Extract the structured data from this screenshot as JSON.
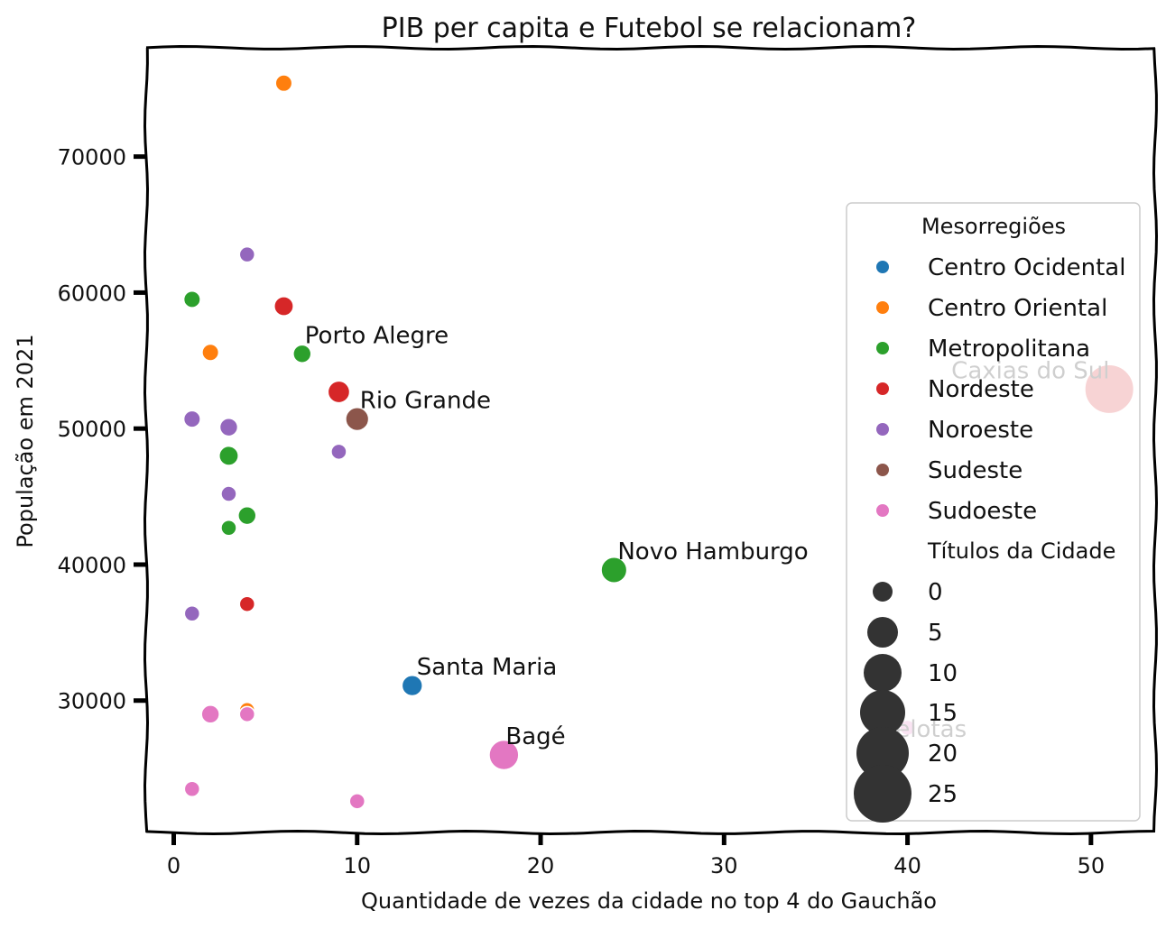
{
  "chart_data": {
    "type": "scatter",
    "title": "PIB per capita e Futebol se relacionam?",
    "xlabel": "Quantidade de vezes da cidade no top 4 do Gauchão",
    "ylabel": "População em 2021",
    "xlim": [
      -1.5,
      53.5
    ],
    "ylim": [
      20300,
      78000
    ],
    "x_ticks": [
      0,
      10,
      20,
      30,
      40,
      50
    ],
    "y_ticks": [
      30000,
      40000,
      50000,
      60000,
      70000
    ],
    "x_tick_labels": [
      "0",
      "10",
      "20",
      "30",
      "40",
      "50"
    ],
    "y_tick_labels": [
      "30000",
      "40000",
      "50000",
      "60000",
      "70000"
    ],
    "grid": false,
    "legend": {
      "placement": "right",
      "hue_title": "Mesorregiões",
      "size_title": "Títulos da Cidade",
      "hue_entries": [
        {
          "label": "Centro Ocidental",
          "color": "#1f77b4"
        },
        {
          "label": "Centro Oriental",
          "color": "#ff7f0e"
        },
        {
          "label": "Metropolitana",
          "color": "#2ca02c"
        },
        {
          "label": "Nordeste",
          "color": "#d62728"
        },
        {
          "label": "Noroeste",
          "color": "#9467bd"
        },
        {
          "label": "Sudeste",
          "color": "#8c564b"
        },
        {
          "label": "Sudoeste",
          "color": "#e377c2"
        }
      ],
      "size_entries": [
        {
          "label": "0",
          "value": 0
        },
        {
          "label": "5",
          "value": 5
        },
        {
          "label": "10",
          "value": 10
        },
        {
          "label": "15",
          "value": 15
        },
        {
          "label": "20",
          "value": 20
        },
        {
          "label": "25",
          "value": 25
        }
      ]
    },
    "points": [
      {
        "x": 6,
        "y": 75400,
        "region": "Centro Oriental",
        "titles": 1
      },
      {
        "x": 4,
        "y": 62800,
        "region": "Noroeste",
        "titles": 0
      },
      {
        "x": 1,
        "y": 59500,
        "region": "Metropolitana",
        "titles": 1
      },
      {
        "x": 6,
        "y": 59000,
        "region": "Nordeste",
        "titles": 3
      },
      {
        "x": 2,
        "y": 55600,
        "region": "Centro Oriental",
        "titles": 1
      },
      {
        "x": 7,
        "y": 55500,
        "region": "Metropolitana",
        "titles": 2,
        "label": "Porto Alegre"
      },
      {
        "x": 9,
        "y": 52700,
        "region": "Nordeste",
        "titles": 5
      },
      {
        "x": 10,
        "y": 50700,
        "region": "Sudeste",
        "titles": 6,
        "label": "Rio Grande"
      },
      {
        "x": 1,
        "y": 50700,
        "region": "Noroeste",
        "titles": 1
      },
      {
        "x": 3,
        "y": 50100,
        "region": "Noroeste",
        "titles": 2
      },
      {
        "x": 9,
        "y": 48300,
        "region": "Noroeste",
        "titles": 0
      },
      {
        "x": 3,
        "y": 48000,
        "region": "Metropolitana",
        "titles": 3
      },
      {
        "x": 3,
        "y": 45200,
        "region": "Noroeste",
        "titles": 0
      },
      {
        "x": 4,
        "y": 43600,
        "region": "Metropolitana",
        "titles": 2
      },
      {
        "x": 3,
        "y": 42700,
        "region": "Metropolitana",
        "titles": 0
      },
      {
        "x": 4,
        "y": 37100,
        "region": "Nordeste",
        "titles": 0
      },
      {
        "x": 1,
        "y": 36400,
        "region": "Noroeste",
        "titles": 0
      },
      {
        "x": 24,
        "y": 39600,
        "region": "Metropolitana",
        "titles": 8,
        "label": "Novo Hamburgo"
      },
      {
        "x": 13,
        "y": 31100,
        "region": "Centro Ocidental",
        "titles": 4,
        "label": "Santa Maria"
      },
      {
        "x": 4,
        "y": 29300,
        "region": "Centro Oriental",
        "titles": 0
      },
      {
        "x": 2,
        "y": 29000,
        "region": "Sudoeste",
        "titles": 2
      },
      {
        "x": 4,
        "y": 29000,
        "region": "Sudoeste",
        "titles": 0
      },
      {
        "x": 18,
        "y": 26000,
        "region": "Sudoeste",
        "titles": 11,
        "label": "Bagé"
      },
      {
        "x": 1,
        "y": 23500,
        "region": "Sudoeste",
        "titles": 0
      },
      {
        "x": 10,
        "y": 22600,
        "region": "Sudoeste",
        "titles": 0
      },
      {
        "x": 51,
        "y": 52900,
        "region": "Nordeste",
        "titles": 26,
        "label": "Caxias do Sul"
      },
      {
        "x": 40,
        "y": 28000,
        "region": "Sudoeste",
        "titles": 0,
        "label": "Pelotas"
      }
    ]
  }
}
